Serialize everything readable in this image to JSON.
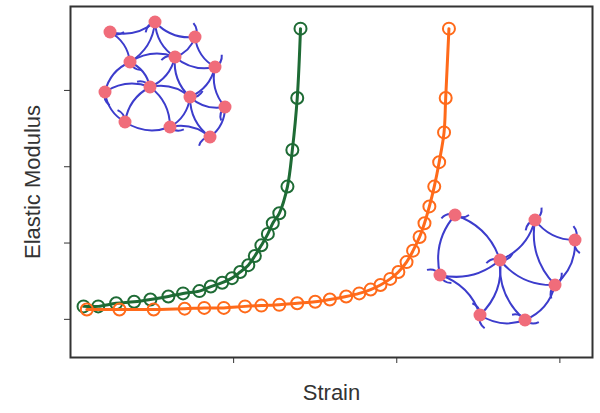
{
  "chart_data": {
    "type": "line",
    "x_label": "Strain",
    "y_label": "Elastic Modulus",
    "xlim": [
      0,
      3.2
    ],
    "xticks": [
      1,
      2,
      3
    ],
    "ylim": [
      0.5,
      5.1
    ],
    "yticks": [
      1,
      2,
      3,
      4
    ],
    "tick_labels": false,
    "grid": false,
    "series": [
      {
        "color": "#1e6b35",
        "marker": "circle",
        "line_style": "solid",
        "x": [
          0.08,
          0.17,
          0.28,
          0.39,
          0.49,
          0.6,
          0.69,
          0.79,
          0.86,
          0.93,
          0.99,
          1.04,
          1.09,
          1.13,
          1.17,
          1.21,
          1.24,
          1.28,
          1.33,
          1.36,
          1.39,
          1.41
        ],
        "values": [
          1.17,
          1.17,
          1.21,
          1.23,
          1.26,
          1.3,
          1.34,
          1.37,
          1.43,
          1.48,
          1.54,
          1.62,
          1.71,
          1.83,
          1.97,
          2.12,
          2.26,
          2.39,
          2.74,
          3.22,
          3.9,
          4.81
        ]
      },
      {
        "color": "#ff6a1a",
        "marker": "circle",
        "line_style": "solid",
        "x": [
          0.1,
          0.3,
          0.51,
          0.7,
          0.82,
          0.94,
          1.07,
          1.17,
          1.28,
          1.39,
          1.5,
          1.59,
          1.69,
          1.77,
          1.84,
          1.9,
          1.96,
          2.01,
          2.06,
          2.1,
          2.14,
          2.17,
          2.2,
          2.23,
          2.26,
          2.29,
          2.3,
          2.32
        ],
        "values": [
          1.13,
          1.13,
          1.13,
          1.14,
          1.15,
          1.15,
          1.17,
          1.18,
          1.19,
          1.21,
          1.23,
          1.26,
          1.3,
          1.34,
          1.39,
          1.45,
          1.53,
          1.62,
          1.75,
          1.9,
          2.08,
          2.26,
          2.48,
          2.74,
          3.06,
          3.45,
          3.9,
          4.81
        ]
      }
    ]
  }
}
